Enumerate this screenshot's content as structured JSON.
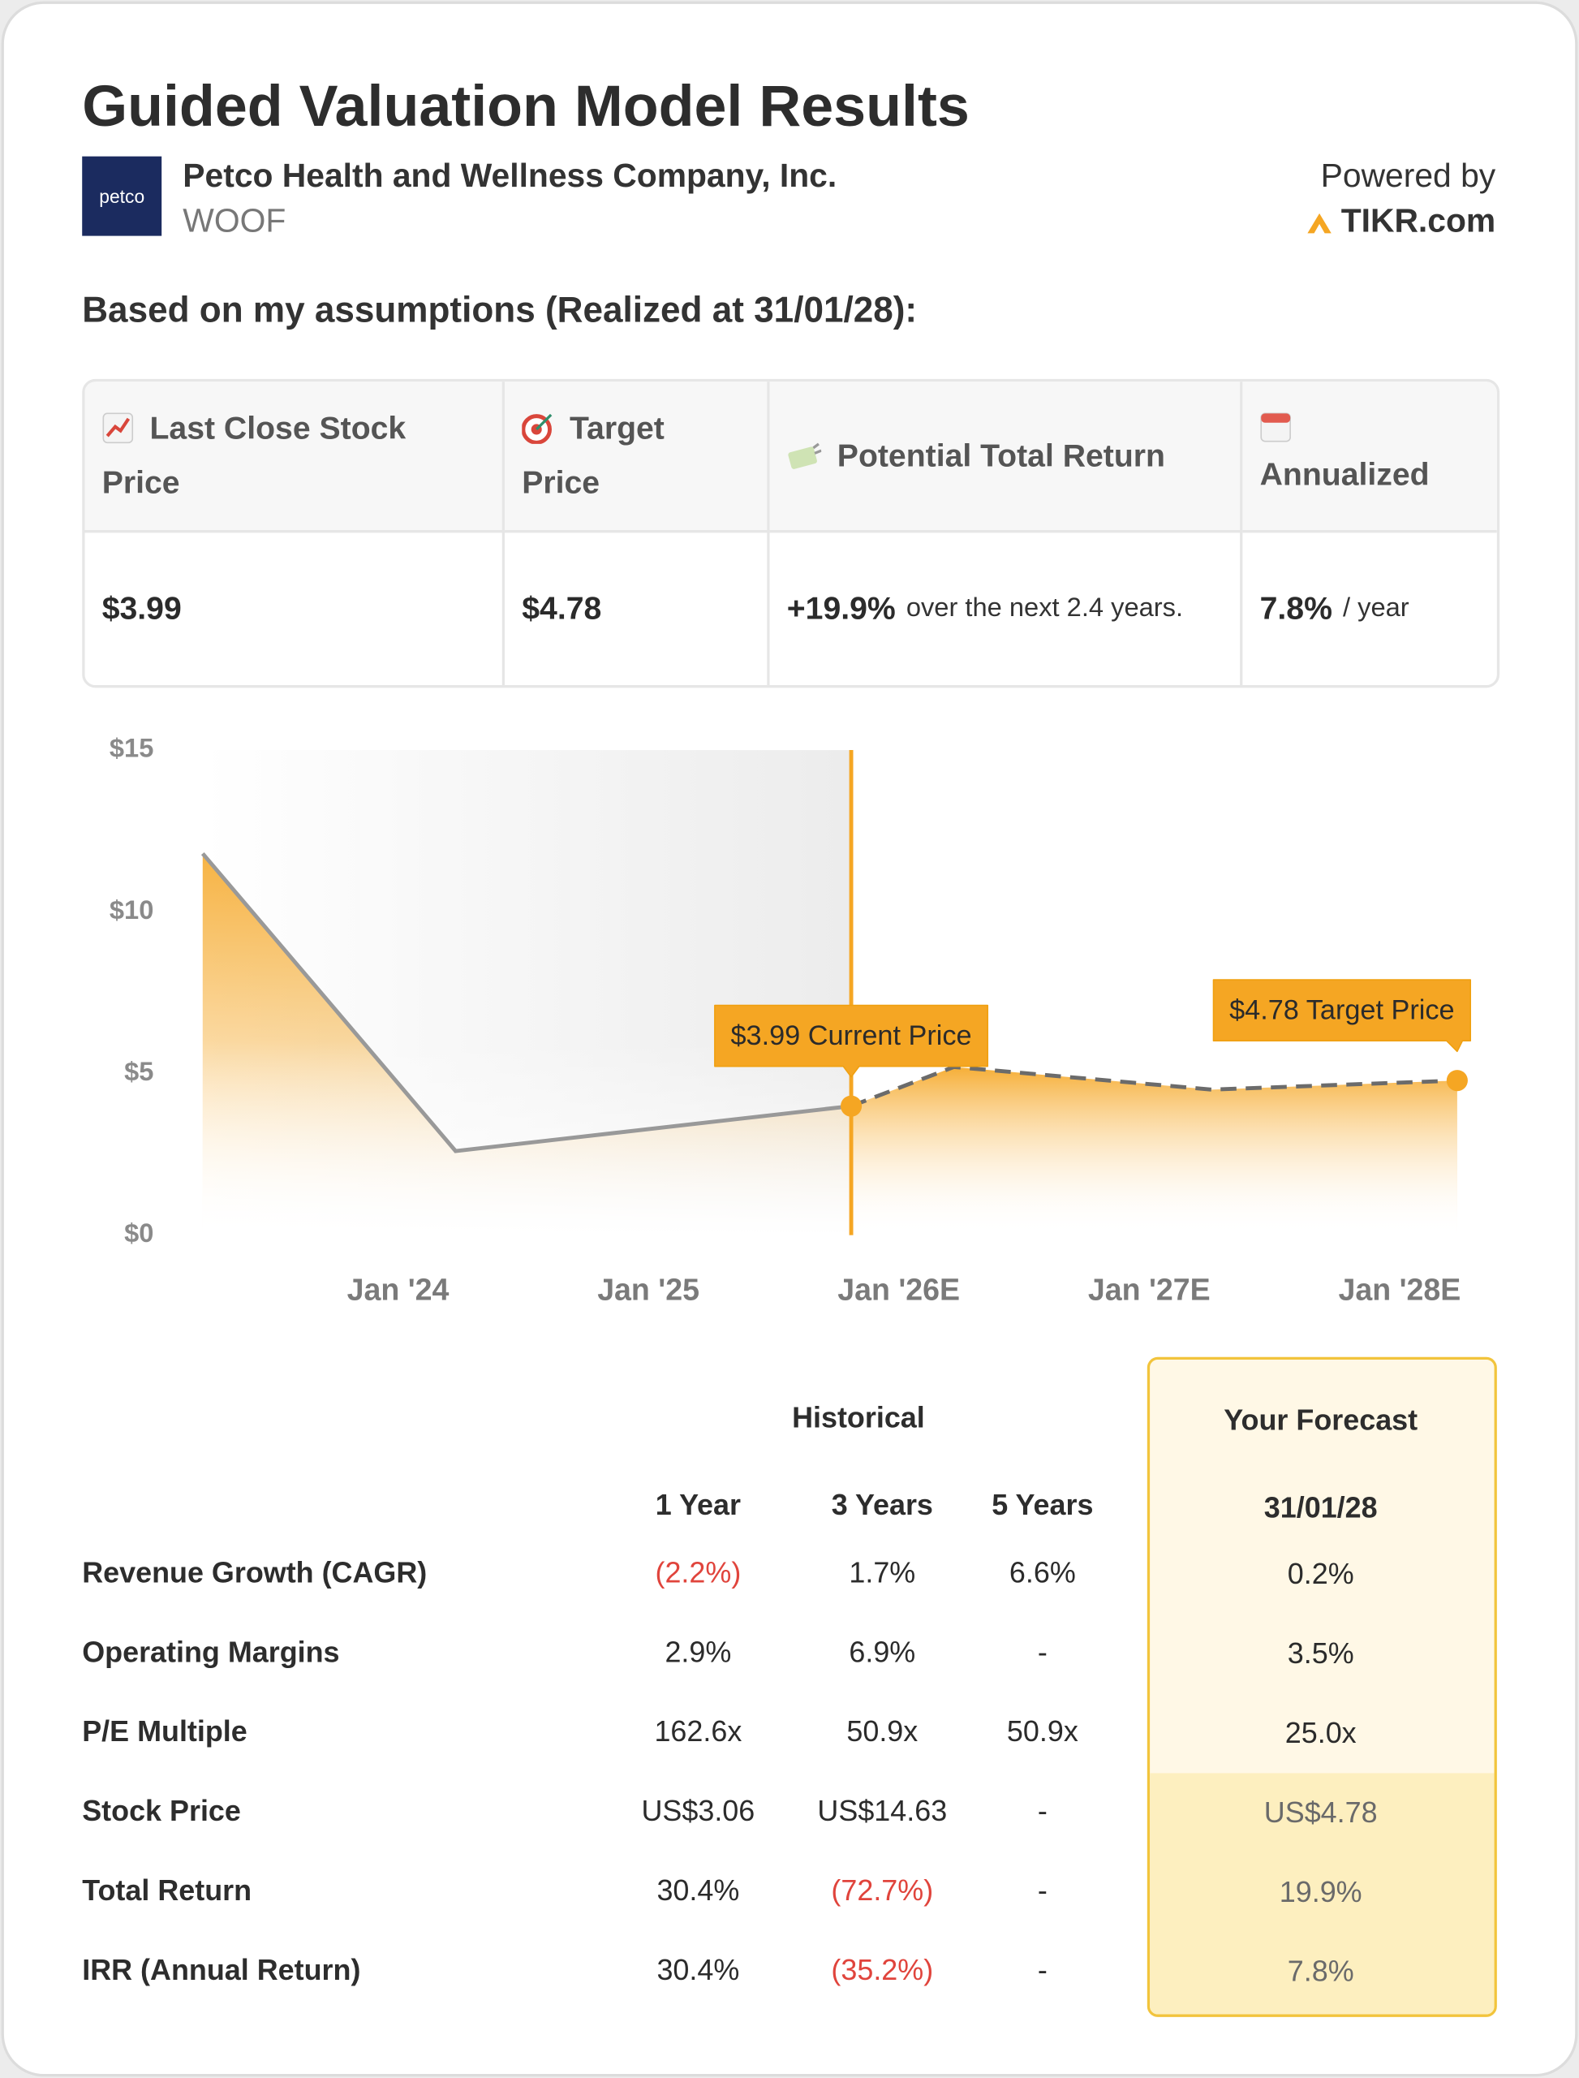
{
  "header": {
    "title": "Guided Valuation Model Results",
    "logo": "petco",
    "company": "Petco Health and Wellness Company, Inc.",
    "ticker": "WOOF",
    "powered_by": "Powered by",
    "brand": "TIKR.com"
  },
  "subtitle": "Based on my assumptions (Realized at 31/01/28):",
  "summary": {
    "columns": [
      {
        "header": "Last Close Stock Price",
        "value": "$3.99"
      },
      {
        "header": "Target Price",
        "value": "$4.78"
      },
      {
        "header": "Potential Total Return",
        "value": "+19.9%",
        "note": "over the next 2.4 years."
      },
      {
        "header": "Annualized",
        "value": "7.8%",
        "note": "/ year"
      }
    ]
  },
  "chart_data": {
    "type": "line",
    "x": [
      2023.22,
      2024.23,
      2025.81,
      2026.22,
      2027.25,
      2028.23
    ],
    "xlim": [
      2023.22,
      2028.23
    ],
    "xticks": [
      {
        "value": 2024,
        "label": "Jan '24"
      },
      {
        "value": 2025,
        "label": "Jan '25"
      },
      {
        "value": 2026,
        "label": "Jan '26E"
      },
      {
        "value": 2027,
        "label": "Jan '27E"
      },
      {
        "value": 2028,
        "label": "Jan '28E"
      }
    ],
    "ylim": [
      0,
      15
    ],
    "yticks": [
      {
        "value": 0,
        "label": "$0"
      },
      {
        "value": 5,
        "label": "$5"
      },
      {
        "value": 10,
        "label": "$10"
      },
      {
        "value": 15,
        "label": "$15"
      }
    ],
    "series": [
      {
        "color": "#999999",
        "fill_color": "#f5a623",
        "values": [
          11.8,
          2.6,
          3.99,
          null,
          null,
          null
        ]
      },
      {
        "color": "#6b6b6b",
        "fill_color": "#f5a218",
        "dashed": true,
        "values": [
          null,
          null,
          3.99,
          5.2,
          4.5,
          4.78
        ]
      }
    ],
    "annotations": [
      {
        "label": "$3.99 Current Price"
      },
      {
        "label": "$4.78 Target Price"
      }
    ],
    "accent": "#f5a623"
  },
  "comparison": {
    "group": "Historical",
    "columns": [
      "1 Year",
      "3 Years",
      "5 Years"
    ],
    "forecast_title": "Your Forecast",
    "forecast_date": "31/01/28",
    "rows": [
      {
        "label": "Revenue Growth (CAGR)",
        "historical": [
          "(2.2%)",
          "1.7%",
          "6.6%"
        ],
        "forecast": "0.2%"
      },
      {
        "label": "Operating Margins",
        "historical": [
          "2.9%",
          "6.9%",
          "-"
        ],
        "forecast": "3.5%"
      },
      {
        "label": "P/E Multiple",
        "historical": [
          "162.6x",
          "50.9x",
          "50.9x"
        ],
        "forecast": "25.0x"
      },
      {
        "label": "Stock Price",
        "historical": [
          "US$3.06",
          "US$14.63",
          "-"
        ],
        "forecast": "US$4.78"
      },
      {
        "label": "Total Return",
        "historical": [
          "30.4%",
          "(72.7%)",
          "-"
        ],
        "forecast": "19.9%"
      },
      {
        "label": "IRR (Annual Return)",
        "historical": [
          "30.4%",
          "(35.2%)",
          "-"
        ],
        "forecast": "7.8%"
      }
    ]
  }
}
